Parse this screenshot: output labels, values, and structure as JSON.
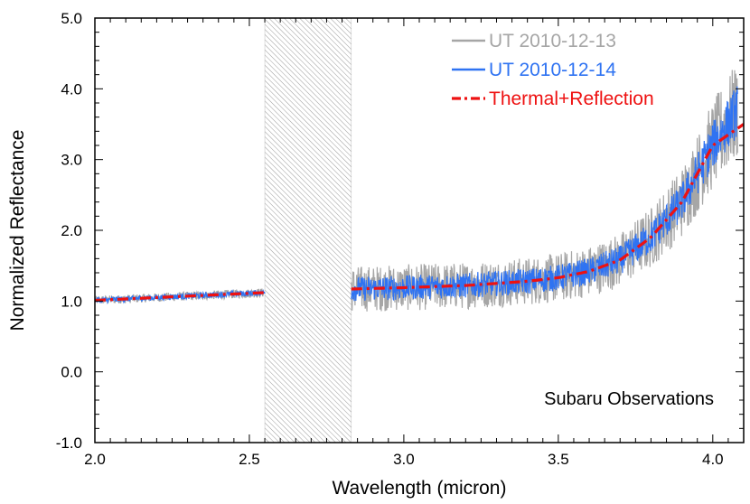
{
  "chart_data": {
    "type": "line",
    "title": "",
    "xlabel": "Wavelength (micron)",
    "ylabel": "Normalized Reflectance",
    "xlim": [
      2.0,
      4.1
    ],
    "ylim": [
      -1.0,
      5.0
    ],
    "x_ticks": [
      {
        "value": 2.0,
        "label": "2.0"
      },
      {
        "value": 2.5,
        "label": "2.5"
      },
      {
        "value": 3.0,
        "label": "3.0"
      },
      {
        "value": 3.5,
        "label": "3.5"
      },
      {
        "value": 4.0,
        "label": "4.0"
      }
    ],
    "y_ticks": [
      {
        "value": -1.0,
        "label": "-1.0"
      },
      {
        "value": 0.0,
        "label": "0.0"
      },
      {
        "value": 1.0,
        "label": "1.0"
      },
      {
        "value": 2.0,
        "label": "2.0"
      },
      {
        "value": 3.0,
        "label": "3.0"
      },
      {
        "value": 4.0,
        "label": "4.0"
      },
      {
        "value": 5.0,
        "label": "5.0"
      }
    ],
    "grid": false,
    "legend_position": "top-right",
    "masked_region": {
      "x_start": 2.55,
      "x_end": 2.83
    },
    "annotation": "Subaru Observations",
    "series": [
      {
        "name": "UT 2010-12-13",
        "style": "noisy-line",
        "color": "#a6a6a6",
        "segments": [
          {
            "x": [
              2.0,
              2.1,
              2.2,
              2.3,
              2.4,
              2.5,
              2.55
            ],
            "y": [
              1.01,
              1.03,
              1.05,
              1.07,
              1.09,
              1.11,
              1.12
            ],
            "noise": 0.06
          },
          {
            "x": [
              2.83,
              3.0,
              3.2,
              3.4,
              3.5,
              3.6,
              3.7,
              3.8,
              3.9,
              4.0,
              4.08
            ],
            "y": [
              1.17,
              1.19,
              1.22,
              1.28,
              1.33,
              1.42,
              1.58,
              1.9,
              2.4,
              3.2,
              3.7
            ],
            "noise": 0.3
          }
        ]
      },
      {
        "name": "UT 2010-12-14",
        "style": "noisy-line",
        "color": "#2f73f2",
        "segments": [
          {
            "x": [
              2.0,
              2.1,
              2.2,
              2.3,
              2.4,
              2.5,
              2.55
            ],
            "y": [
              1.01,
              1.03,
              1.05,
              1.07,
              1.09,
              1.11,
              1.12
            ],
            "noise": 0.04
          },
          {
            "x": [
              2.83,
              3.0,
              3.2,
              3.4,
              3.5,
              3.6,
              3.7,
              3.8,
              3.9,
              4.0,
              4.08
            ],
            "y": [
              1.17,
              1.19,
              1.22,
              1.28,
              1.33,
              1.42,
              1.58,
              1.9,
              2.4,
              3.2,
              3.7
            ],
            "noise": 0.16
          }
        ]
      },
      {
        "name": "Thermal+Reflection",
        "style": "dash-dot",
        "color": "#ee1111",
        "segments": [
          {
            "x": [
              2.0,
              2.1,
              2.2,
              2.3,
              2.4,
              2.5,
              2.55
            ],
            "y": [
              1.01,
              1.03,
              1.05,
              1.07,
              1.09,
              1.11,
              1.12
            ]
          },
          {
            "x": [
              2.83,
              3.0,
              3.2,
              3.4,
              3.5,
              3.6,
              3.7,
              3.8,
              3.9,
              4.0,
              4.1
            ],
            "y": [
              1.17,
              1.19,
              1.22,
              1.28,
              1.33,
              1.42,
              1.58,
              1.9,
              2.4,
              3.2,
              3.5
            ]
          }
        ]
      }
    ]
  }
}
